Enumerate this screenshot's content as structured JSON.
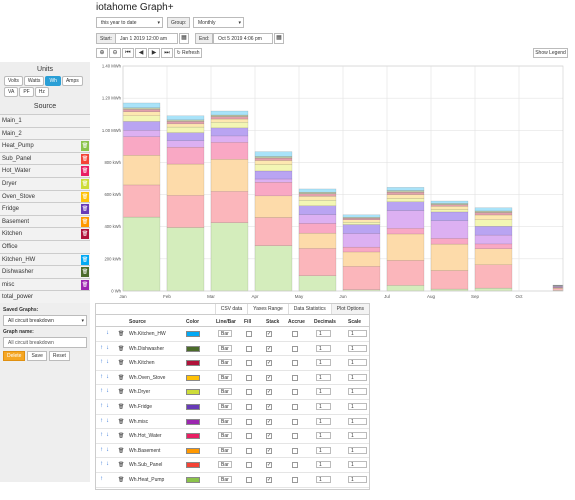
{
  "app": {
    "title": "iotahome Graph+"
  },
  "controls": {
    "period_value": "this year to date",
    "group_label": "Group:",
    "group_value": "Monthly",
    "start_label": "Start:",
    "start_value": "Jan 1 2019 12:00 am",
    "end_label": "End:",
    "end_value": "Oct 5 2019 4:06 pm",
    "refresh_label": "Refresh",
    "show_legend_label": "Show Legend"
  },
  "sidebar": {
    "units_title": "Units",
    "units": [
      "Volts",
      "Watts",
      "Wh",
      "Amps",
      "VA",
      "PF",
      "Hz"
    ],
    "active_unit": "Wh",
    "source_title": "Source",
    "sources": [
      {
        "label": "Main_1",
        "color": ""
      },
      {
        "label": "Main_2",
        "color": ""
      },
      {
        "label": "Heat_Pump",
        "color": "#8bc34a"
      },
      {
        "label": "Sub_Panel",
        "color": "#f44336"
      },
      {
        "label": "Hot_Water",
        "color": "#e91e63"
      },
      {
        "label": "Dryer",
        "color": "#cddc39"
      },
      {
        "label": "Oven_Stove",
        "color": "#ffc107"
      },
      {
        "label": "Fridge",
        "color": "#673ab7"
      },
      {
        "label": "Basement",
        "color": "#ff9800"
      },
      {
        "label": "Kitchen",
        "color": "#b0123a"
      },
      {
        "label": "Office",
        "color": ""
      },
      {
        "label": "Kitchen_HW",
        "color": "#03a9f4"
      },
      {
        "label": "Dishwasher",
        "color": "#4b6b2a"
      },
      {
        "label": "misc",
        "color": "#9c27b0"
      },
      {
        "label": "total_power",
        "color": ""
      }
    ],
    "saved_graphs_label": "Saved Graphs:",
    "saved_graphs_value": "All circuit breakdown",
    "graph_name_label": "Graph name:",
    "graph_name_value": "All circuit breakdown",
    "delete_label": "Delete",
    "save_label": "Save",
    "reset_label": "Reset"
  },
  "chart_data": {
    "type": "bar",
    "stacked": true,
    "categories": [
      "Jan",
      "Feb",
      "Mar",
      "Apr",
      "May",
      "Jun",
      "Jul",
      "Aug",
      "Sep",
      "Oct"
    ],
    "yticks": [
      "0 Wh",
      "200 kWh",
      "400 kWh",
      "600 kWh",
      "800 kWh",
      "1.00 MWh",
      "1.20 MWh",
      "1.40 MWh"
    ],
    "ylim": [
      0,
      1400
    ],
    "grid": true,
    "series": [
      {
        "name": "Wh.Heat_Pump",
        "color": "#d4edbc",
        "values": [
          460,
          395,
          425,
          282,
          95,
          8,
          35,
          12,
          18,
          4
        ]
      },
      {
        "name": "Wh.Sub_Panel",
        "color": "#fbb6bb",
        "values": [
          200,
          200,
          195,
          175,
          170,
          145,
          155,
          115,
          145,
          10
        ]
      },
      {
        "name": "Wh.Basement",
        "color": "#fddbaa",
        "values": [
          185,
          195,
          200,
          135,
          95,
          90,
          165,
          165,
          100,
          5
        ]
      },
      {
        "name": "Wh.Hot_Water",
        "color": "#f9a8c4",
        "values": [
          115,
          105,
          105,
          85,
          60,
          30,
          35,
          35,
          30,
          3
        ]
      },
      {
        "name": "Wh.misc",
        "color": "#dcb0f2",
        "values": [
          40,
          40,
          40,
          20,
          55,
          85,
          110,
          110,
          55,
          3
        ]
      },
      {
        "name": "Wh.Fridge",
        "color": "#b9a4f2",
        "values": [
          55,
          50,
          50,
          50,
          55,
          55,
          55,
          55,
          55,
          4
        ]
      },
      {
        "name": "Wh.Dryer",
        "color": "#f3f6b4",
        "values": [
          35,
          35,
          35,
          40,
          35,
          15,
          20,
          15,
          40,
          2
        ]
      },
      {
        "name": "Wh.Oven_Stove",
        "color": "#fde8b0",
        "values": [
          25,
          20,
          20,
          25,
          25,
          15,
          25,
          20,
          30,
          2
        ]
      },
      {
        "name": "Wh.Kitchen",
        "color": "#e2a0ac",
        "values": [
          15,
          15,
          15,
          15,
          15,
          10,
          15,
          10,
          15,
          1
        ]
      },
      {
        "name": "Wh.Dishwasher",
        "color": "#bfc9a7",
        "values": [
          10,
          10,
          10,
          10,
          10,
          6,
          10,
          8,
          10,
          1
        ]
      },
      {
        "name": "Wh.Kitchen_HW",
        "color": "#a9e3f9",
        "values": [
          30,
          25,
          25,
          30,
          20,
          15,
          20,
          15,
          20,
          2
        ]
      }
    ]
  },
  "panel": {
    "tabs": [
      "CSV data",
      "Yaxes Range",
      "Data Statistics",
      "Plot Options"
    ],
    "active_tab": "Plot Options",
    "headers": [
      "Source",
      "Color",
      "Line/Bar",
      "Fill",
      "Stack",
      "Accrue",
      "Decimals",
      "Scale"
    ],
    "rows": [
      {
        "source": "Wh.Kitchen_HW",
        "color": "#03a9f4",
        "type": "Bar",
        "stack": "✓",
        "decimals": "1",
        "scale": "1",
        "up": "",
        "down": "↓"
      },
      {
        "source": "Wh.Dishwasher",
        "color": "#4b6b2a",
        "type": "Bar",
        "stack": "✓",
        "decimals": "1",
        "scale": "1",
        "up": "↑",
        "down": "↓"
      },
      {
        "source": "Wh.Kitchen",
        "color": "#b0123a",
        "type": "Bar",
        "stack": "✓",
        "decimals": "1",
        "scale": "1",
        "up": "↑",
        "down": "↓"
      },
      {
        "source": "Wh.Oven_Stove",
        "color": "#ffc107",
        "type": "Bar",
        "stack": "✓",
        "decimals": "1",
        "scale": "1",
        "up": "↑",
        "down": "↓"
      },
      {
        "source": "Wh.Dryer",
        "color": "#cddc39",
        "type": "Bar",
        "stack": "✓",
        "decimals": "1",
        "scale": "1",
        "up": "↑",
        "down": "↓"
      },
      {
        "source": "Wh.Fridge",
        "color": "#673ab7",
        "type": "Bar",
        "stack": "✓",
        "decimals": "1",
        "scale": "1",
        "up": "↑",
        "down": "↓"
      },
      {
        "source": "Wh.misc",
        "color": "#9c27b0",
        "type": "Bar",
        "stack": "✓",
        "decimals": "1",
        "scale": "1",
        "up": "↑",
        "down": "↓"
      },
      {
        "source": "Wh.Hot_Water",
        "color": "#e91e63",
        "type": "Bar",
        "stack": "✓",
        "decimals": "1",
        "scale": "1",
        "up": "↑",
        "down": "↓"
      },
      {
        "source": "Wh.Basement",
        "color": "#ff9800",
        "type": "Bar",
        "stack": "✓",
        "decimals": "1",
        "scale": "1",
        "up": "↑",
        "down": "↓"
      },
      {
        "source": "Wh.Sub_Panel",
        "color": "#f44336",
        "type": "Bar",
        "stack": "✓",
        "decimals": "1",
        "scale": "1",
        "up": "↑",
        "down": "↓"
      },
      {
        "source": "Wh.Heat_Pump",
        "color": "#8bc34a",
        "type": "Bar",
        "stack": "✓",
        "decimals": "1",
        "scale": "1",
        "up": "↑",
        "down": ""
      }
    ]
  }
}
